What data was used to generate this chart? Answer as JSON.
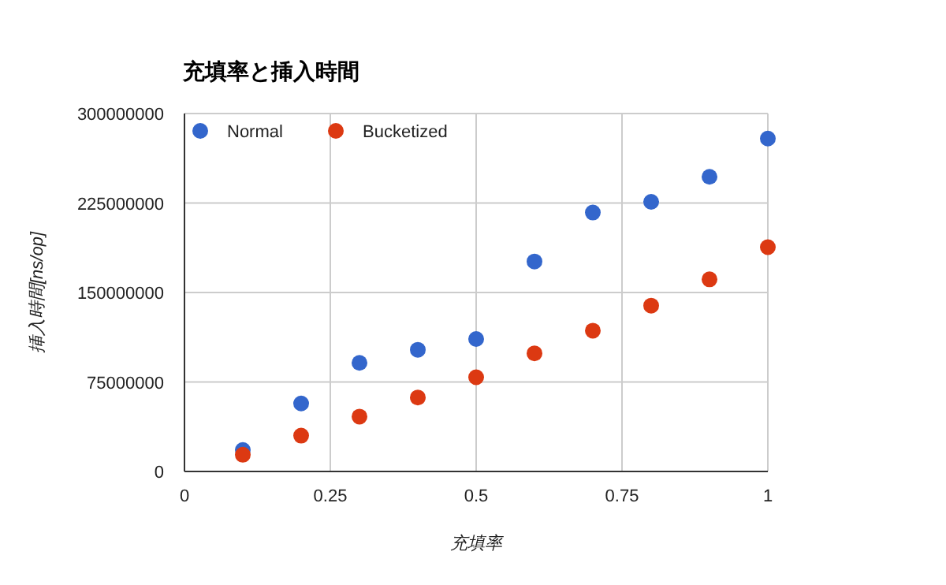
{
  "chart_data": {
    "type": "scatter",
    "title": "充填率と挿入時間",
    "xlabel": "充填率",
    "ylabel": "挿入時間[ns/op]",
    "x": [
      0.1,
      0.2,
      0.3,
      0.4,
      0.5,
      0.6,
      0.7,
      0.8,
      0.9,
      1.0
    ],
    "series": [
      {
        "name": "Normal",
        "color": "#3366cc",
        "values": [
          18000000,
          57000000,
          91000000,
          102000000,
          111000000,
          176000000,
          217000000,
          226000000,
          247000000,
          279000000
        ]
      },
      {
        "name": "Bucketized",
        "color": "#dc3912",
        "values": [
          14000000,
          30000000,
          46000000,
          62000000,
          79000000,
          99000000,
          118000000,
          139000000,
          161000000,
          188000000
        ]
      }
    ],
    "xlim": [
      0,
      1
    ],
    "xticks": [
      0,
      0.25,
      0.5,
      0.75,
      1
    ],
    "ylim": [
      0,
      300000000
    ],
    "yticks": [
      0,
      75000000,
      150000000,
      225000000,
      300000000
    ],
    "grid": true,
    "legend": "top left",
    "marker": "circle"
  }
}
